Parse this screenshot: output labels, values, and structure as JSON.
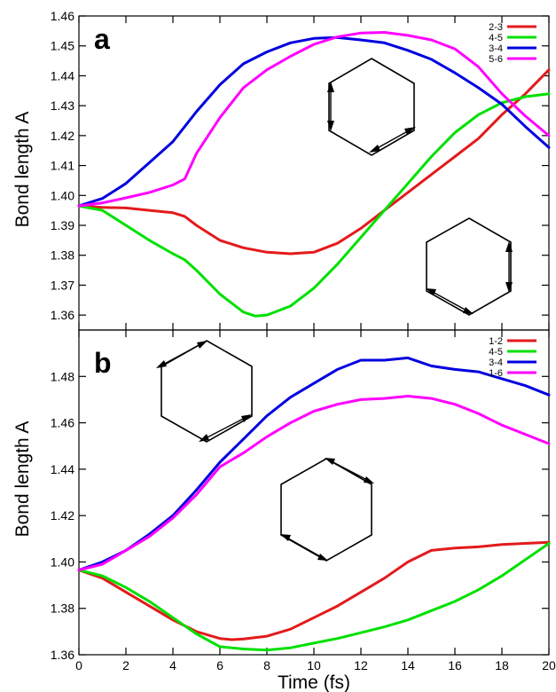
{
  "chart_data": [
    {
      "type": "line",
      "panel_label": "a",
      "ylabel": "Bond length A",
      "xlim": [
        0,
        20
      ],
      "ylim": [
        1.355,
        1.46
      ],
      "yticks": [
        "1.36",
        "1.37",
        "1.38",
        "1.39",
        "1.40",
        "1.41",
        "1.42",
        "1.43",
        "1.44",
        "1.45",
        "1.46"
      ],
      "ytick_values": [
        1.36,
        1.37,
        1.38,
        1.39,
        1.4,
        1.41,
        1.42,
        1.43,
        1.44,
        1.45,
        1.46
      ],
      "legend_position": "top-right",
      "series": [
        {
          "name": "2-3",
          "color": "#e41a1c",
          "x": [
            0,
            1,
            2,
            3,
            4,
            4.5,
            5,
            6,
            7,
            8,
            9,
            10,
            11,
            12,
            13,
            14,
            15,
            16,
            17,
            18,
            19,
            20
          ],
          "y": [
            1.3965,
            1.396,
            1.3958,
            1.395,
            1.3942,
            1.393,
            1.39,
            1.385,
            1.3825,
            1.381,
            1.3805,
            1.381,
            1.384,
            1.389,
            1.395,
            1.401,
            1.407,
            1.413,
            1.419,
            1.427,
            1.434,
            1.442
          ]
        },
        {
          "name": "4-5",
          "color": "#00e000",
          "x": [
            0,
            1,
            2,
            3,
            4,
            4.5,
            5,
            6,
            7,
            7.5,
            8,
            9,
            10,
            11,
            12,
            13,
            14,
            15,
            16,
            17,
            18,
            19,
            20
          ],
          "y": [
            1.3965,
            1.395,
            1.39,
            1.385,
            1.3805,
            1.3785,
            1.375,
            1.367,
            1.361,
            1.3597,
            1.36,
            1.363,
            1.369,
            1.377,
            1.386,
            1.395,
            1.404,
            1.413,
            1.421,
            1.427,
            1.431,
            1.433,
            1.434
          ]
        },
        {
          "name": "3-4",
          "color": "#0000e0",
          "x": [
            0,
            1,
            2,
            3,
            4,
            5,
            6,
            7,
            8,
            9,
            10,
            11,
            12,
            13,
            14,
            15,
            16,
            17,
            18,
            19,
            20
          ],
          "y": [
            1.3965,
            1.399,
            1.404,
            1.411,
            1.418,
            1.428,
            1.437,
            1.444,
            1.448,
            1.451,
            1.4525,
            1.4528,
            1.452,
            1.451,
            1.4485,
            1.4455,
            1.441,
            1.436,
            1.4305,
            1.423,
            1.416
          ]
        },
        {
          "name": "5-6",
          "color": "#ff00ff",
          "x": [
            0,
            1,
            2,
            3,
            4,
            4.5,
            5,
            6,
            7,
            8,
            9,
            10,
            11,
            12,
            13,
            14,
            15,
            16,
            17,
            18,
            19,
            20
          ],
          "y": [
            1.3965,
            1.3975,
            1.3992,
            1.401,
            1.4035,
            1.4055,
            1.414,
            1.426,
            1.436,
            1.442,
            1.4465,
            1.4505,
            1.453,
            1.4543,
            1.4545,
            1.4535,
            1.452,
            1.449,
            1.443,
            1.434,
            1.4265,
            1.42
          ]
        }
      ]
    },
    {
      "type": "line",
      "panel_label": "b",
      "ylabel": "Bond length A",
      "xlabel": "Time (fs)",
      "xlim": [
        0,
        20
      ],
      "ylim": [
        1.36,
        1.5
      ],
      "xticks": [
        "0",
        "2",
        "4",
        "6",
        "8",
        "10",
        "12",
        "14",
        "16",
        "18",
        "20"
      ],
      "xtick_values": [
        0,
        2,
        4,
        6,
        8,
        10,
        12,
        14,
        16,
        18,
        20
      ],
      "yticks": [
        "1.36",
        "1.38",
        "1.40",
        "1.42",
        "1.44",
        "1.46",
        "1.48"
      ],
      "ytick_values": [
        1.36,
        1.38,
        1.4,
        1.42,
        1.44,
        1.46,
        1.48
      ],
      "legend_position": "top-right",
      "series": [
        {
          "name": "1-2",
          "color": "#e41a1c",
          "x": [
            0,
            1,
            2,
            3,
            4,
            5,
            6,
            6.5,
            7,
            8,
            9,
            10,
            11,
            12,
            13,
            14,
            15,
            16,
            17,
            18,
            19,
            20
          ],
          "y": [
            1.3965,
            1.393,
            1.387,
            1.381,
            1.375,
            1.37,
            1.367,
            1.3665,
            1.3668,
            1.368,
            1.371,
            1.376,
            1.381,
            1.387,
            1.393,
            1.4,
            1.405,
            1.406,
            1.4065,
            1.4075,
            1.408,
            1.4085
          ]
        },
        {
          "name": "4-5",
          "color": "#00e000",
          "x": [
            0,
            1,
            2,
            3,
            4,
            5,
            6,
            7,
            8,
            9,
            10,
            11,
            12,
            13,
            14,
            15,
            16,
            17,
            18,
            19,
            20
          ],
          "y": [
            1.3965,
            1.394,
            1.389,
            1.383,
            1.376,
            1.369,
            1.3635,
            1.3625,
            1.362,
            1.363,
            1.365,
            1.367,
            1.3695,
            1.372,
            1.375,
            1.379,
            1.383,
            1.388,
            1.394,
            1.401,
            1.408
          ]
        },
        {
          "name": "3-4",
          "color": "#0000e0",
          "x": [
            0,
            1,
            2,
            3,
            4,
            5,
            6,
            7,
            8,
            9,
            10,
            11,
            12,
            13,
            14,
            15,
            16,
            17,
            18,
            19,
            20
          ],
          "y": [
            1.3965,
            1.4,
            1.405,
            1.412,
            1.42,
            1.431,
            1.443,
            1.453,
            1.463,
            1.471,
            1.477,
            1.483,
            1.487,
            1.487,
            1.488,
            1.4845,
            1.483,
            1.482,
            1.479,
            1.476,
            1.472
          ]
        },
        {
          "name": "1-6",
          "color": "#ff00ff",
          "x": [
            0,
            1,
            2,
            3,
            4,
            5,
            6,
            7,
            8,
            9,
            10,
            11,
            12,
            13,
            14,
            15,
            16,
            17,
            18,
            19,
            20
          ],
          "y": [
            1.3965,
            1.399,
            1.405,
            1.411,
            1.419,
            1.429,
            1.441,
            1.447,
            1.454,
            1.46,
            1.465,
            1.468,
            1.47,
            1.4705,
            1.4715,
            1.4705,
            1.468,
            1.464,
            1.459,
            1.455,
            1.451
          ]
        }
      ]
    }
  ]
}
